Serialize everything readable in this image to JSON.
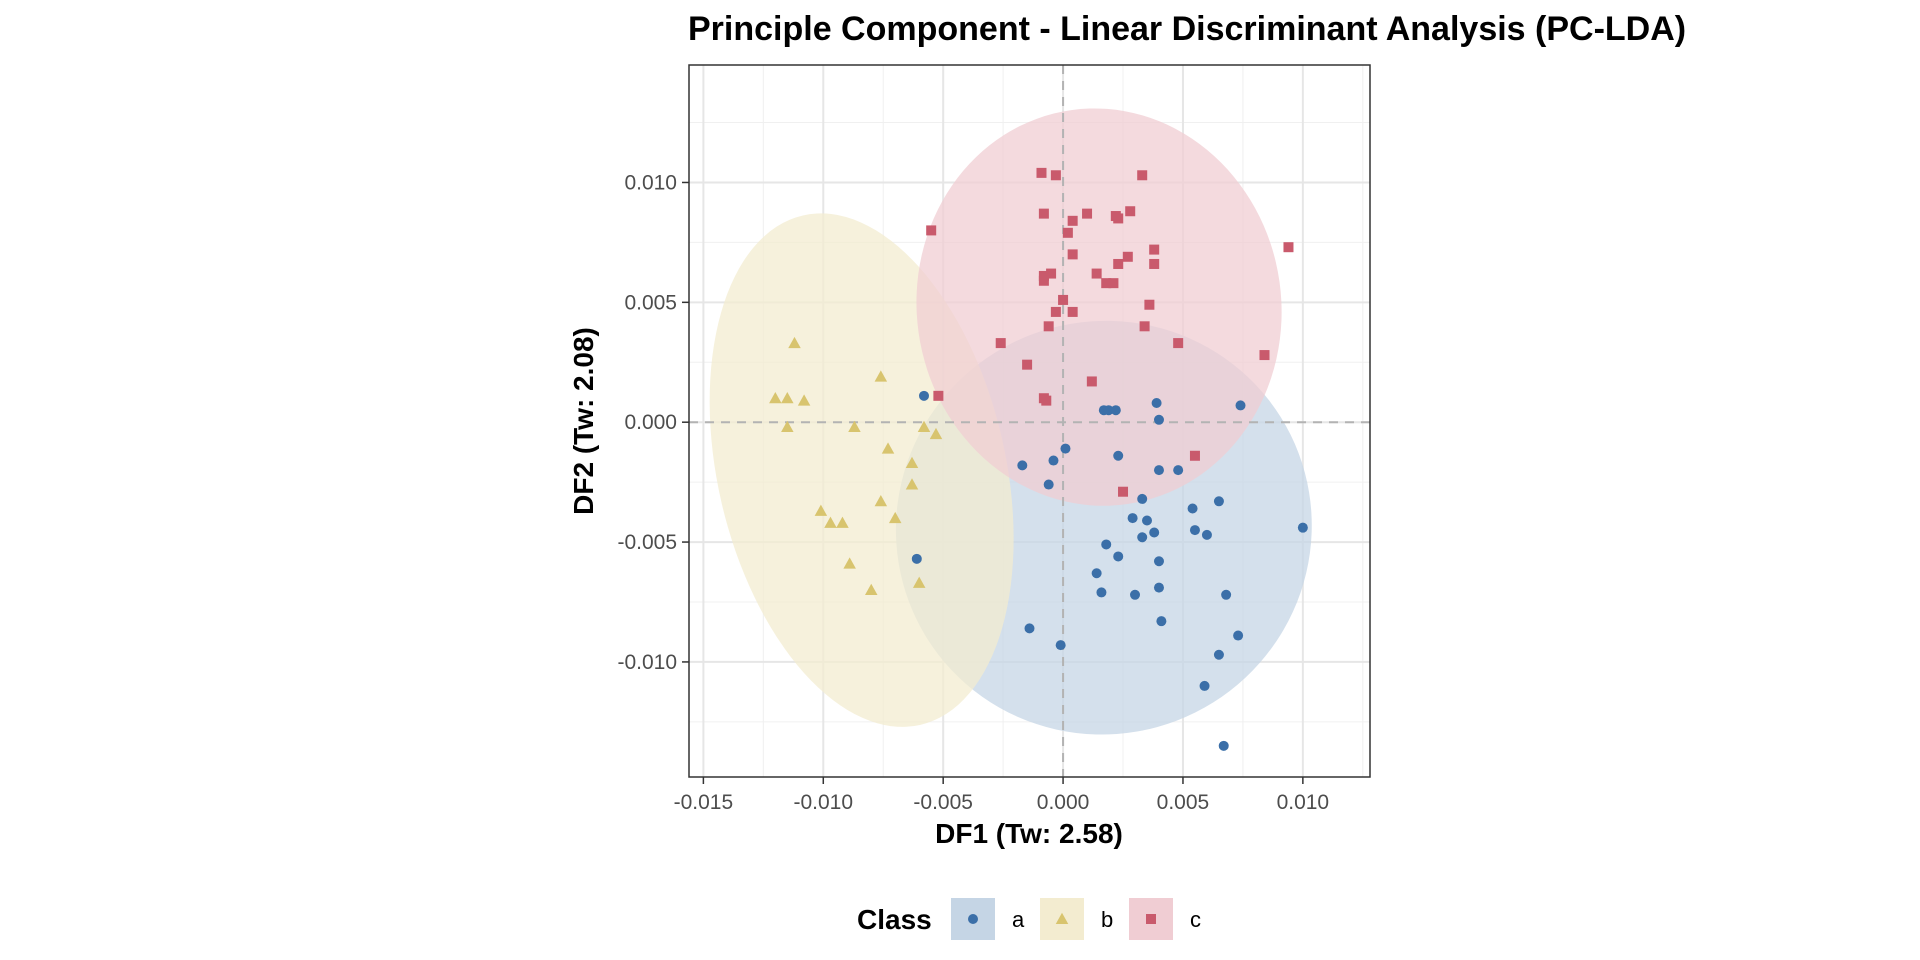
{
  "chart_data": {
    "type": "scatter",
    "title": "Principle Component - Linear Discriminant Analysis (PC-LDA)",
    "xlabel": "DF1 (Tw: 2.58)",
    "ylabel": "DF2 (Tw: 2.08)",
    "xlim": [
      -0.0156,
      0.0128
    ],
    "ylim": [
      -0.0148,
      0.0149
    ],
    "xticks": [
      -0.015,
      -0.01,
      -0.005,
      0.0,
      0.005,
      0.01
    ],
    "xtick_labels": [
      "-0.015",
      "-0.010",
      "-0.005",
      "0.000",
      "0.005",
      "0.010"
    ],
    "yticks": [
      -0.01,
      -0.005,
      0.0,
      0.005,
      0.01
    ],
    "ytick_labels": [
      "-0.010",
      "-0.005",
      "0.000",
      "0.005",
      "0.010"
    ],
    "grid": true,
    "reference_lines": {
      "x": 0,
      "y": 0,
      "style": "dashed"
    },
    "legend": {
      "title": "Class",
      "position": "bottom"
    },
    "series": [
      {
        "name": "a",
        "color": "#3b6fa8",
        "fill": "#c5d5e5",
        "marker": "circle",
        "ellipse": {
          "cx": 0.0017,
          "cy": -0.0044,
          "rx": 0.0087,
          "ry": 0.0086,
          "angle": -32
        },
        "points": [
          [
            -0.0058,
            0.0011
          ],
          [
            0.0017,
            0.0005
          ],
          [
            0.0019,
            0.0005
          ],
          [
            0.0022,
            0.0005
          ],
          [
            0.0039,
            0.0008
          ],
          [
            0.004,
            0.0001
          ],
          [
            0.0074,
            0.0007
          ],
          [
            -0.0017,
            -0.0018
          ],
          [
            0.0001,
            -0.0011
          ],
          [
            -0.0004,
            -0.0016
          ],
          [
            0.0023,
            -0.0014
          ],
          [
            0.004,
            -0.002
          ],
          [
            0.0048,
            -0.002
          ],
          [
            -0.0006,
            -0.0026
          ],
          [
            0.0033,
            -0.0032
          ],
          [
            0.0054,
            -0.0036
          ],
          [
            0.0065,
            -0.0033
          ],
          [
            0.0029,
            -0.004
          ],
          [
            0.0035,
            -0.0041
          ],
          [
            0.0038,
            -0.0046
          ],
          [
            0.0055,
            -0.0045
          ],
          [
            0.006,
            -0.0047
          ],
          [
            0.01,
            -0.0044
          ],
          [
            0.0018,
            -0.0051
          ],
          [
            0.0033,
            -0.0048
          ],
          [
            0.0023,
            -0.0056
          ],
          [
            0.004,
            -0.0058
          ],
          [
            -0.0061,
            -0.0057
          ],
          [
            0.0014,
            -0.0063
          ],
          [
            0.0016,
            -0.0071
          ],
          [
            0.003,
            -0.0072
          ],
          [
            0.004,
            -0.0069
          ],
          [
            0.0068,
            -0.0072
          ],
          [
            0.0041,
            -0.0083
          ],
          [
            0.0073,
            -0.0089
          ],
          [
            -0.0014,
            -0.0086
          ],
          [
            -0.0001,
            -0.0093
          ],
          [
            0.0065,
            -0.0097
          ],
          [
            0.0059,
            -0.011
          ],
          [
            0.0067,
            -0.0135
          ]
        ]
      },
      {
        "name": "b",
        "color": "#d8c46e",
        "fill": "#f3ecd0",
        "marker": "triangle",
        "ellipse": {
          "cx": -0.0084,
          "cy": -0.002,
          "rx": 0.0109,
          "ry": 0.006,
          "angle": 77
        },
        "points": [
          [
            -0.0112,
            0.0033
          ],
          [
            -0.0076,
            0.0019
          ],
          [
            -0.012,
            0.001
          ],
          [
            -0.0115,
            0.001
          ],
          [
            -0.0108,
            0.0009
          ],
          [
            -0.0115,
            -0.0002
          ],
          [
            -0.0087,
            -0.0002
          ],
          [
            -0.0058,
            -0.0002
          ],
          [
            -0.0053,
            -0.0005
          ],
          [
            -0.0073,
            -0.0011
          ],
          [
            -0.0063,
            -0.0017
          ],
          [
            -0.0076,
            -0.0033
          ],
          [
            -0.0063,
            -0.0026
          ],
          [
            -0.0101,
            -0.0037
          ],
          [
            -0.0097,
            -0.0042
          ],
          [
            -0.0092,
            -0.0042
          ],
          [
            -0.007,
            -0.004
          ],
          [
            -0.0089,
            -0.0059
          ],
          [
            -0.006,
            -0.0067
          ],
          [
            -0.008,
            -0.007
          ]
        ]
      },
      {
        "name": "c",
        "color": "#c95a6c",
        "fill": "#f0cdd3",
        "marker": "square",
        "ellipse": {
          "cx": 0.0015,
          "cy": 0.0048,
          "rx": 0.0076,
          "ry": 0.0083,
          "angle": -8
        },
        "points": [
          [
            -0.0009,
            0.0104
          ],
          [
            -0.0003,
            0.0103
          ],
          [
            0.0033,
            0.0103
          ],
          [
            -0.0055,
            0.008
          ],
          [
            -0.0008,
            0.0087
          ],
          [
            0.001,
            0.0087
          ],
          [
            0.0023,
            0.0085
          ],
          [
            0.0028,
            0.0088
          ],
          [
            0.0002,
            0.0079
          ],
          [
            0.0004,
            0.0084
          ],
          [
            0.0022,
            0.0086
          ],
          [
            0.0038,
            0.0072
          ],
          [
            0.0094,
            0.0073
          ],
          [
            0.0004,
            0.007
          ],
          [
            0.0027,
            0.0069
          ],
          [
            0.0023,
            0.0066
          ],
          [
            0.0038,
            0.0066
          ],
          [
            -0.0008,
            0.0061
          ],
          [
            -0.0005,
            0.0062
          ],
          [
            0.0014,
            0.0062
          ],
          [
            0.0018,
            0.0058
          ],
          [
            0.0021,
            0.0058
          ],
          [
            -0.0008,
            0.0059
          ],
          [
            0.0,
            0.0051
          ],
          [
            0.0036,
            0.0049
          ],
          [
            -0.0003,
            0.0046
          ],
          [
            0.0004,
            0.0046
          ],
          [
            -0.0006,
            0.004
          ],
          [
            0.0034,
            0.004
          ],
          [
            -0.0026,
            0.0033
          ],
          [
            0.0048,
            0.0033
          ],
          [
            0.0084,
            0.0028
          ],
          [
            -0.0015,
            0.0024
          ],
          [
            0.0012,
            0.0017
          ],
          [
            -0.0052,
            0.0011
          ],
          [
            -0.0008,
            0.001
          ],
          [
            -0.0007,
            0.0009
          ],
          [
            0.0055,
            -0.0014
          ],
          [
            0.0025,
            -0.0029
          ]
        ]
      }
    ]
  }
}
